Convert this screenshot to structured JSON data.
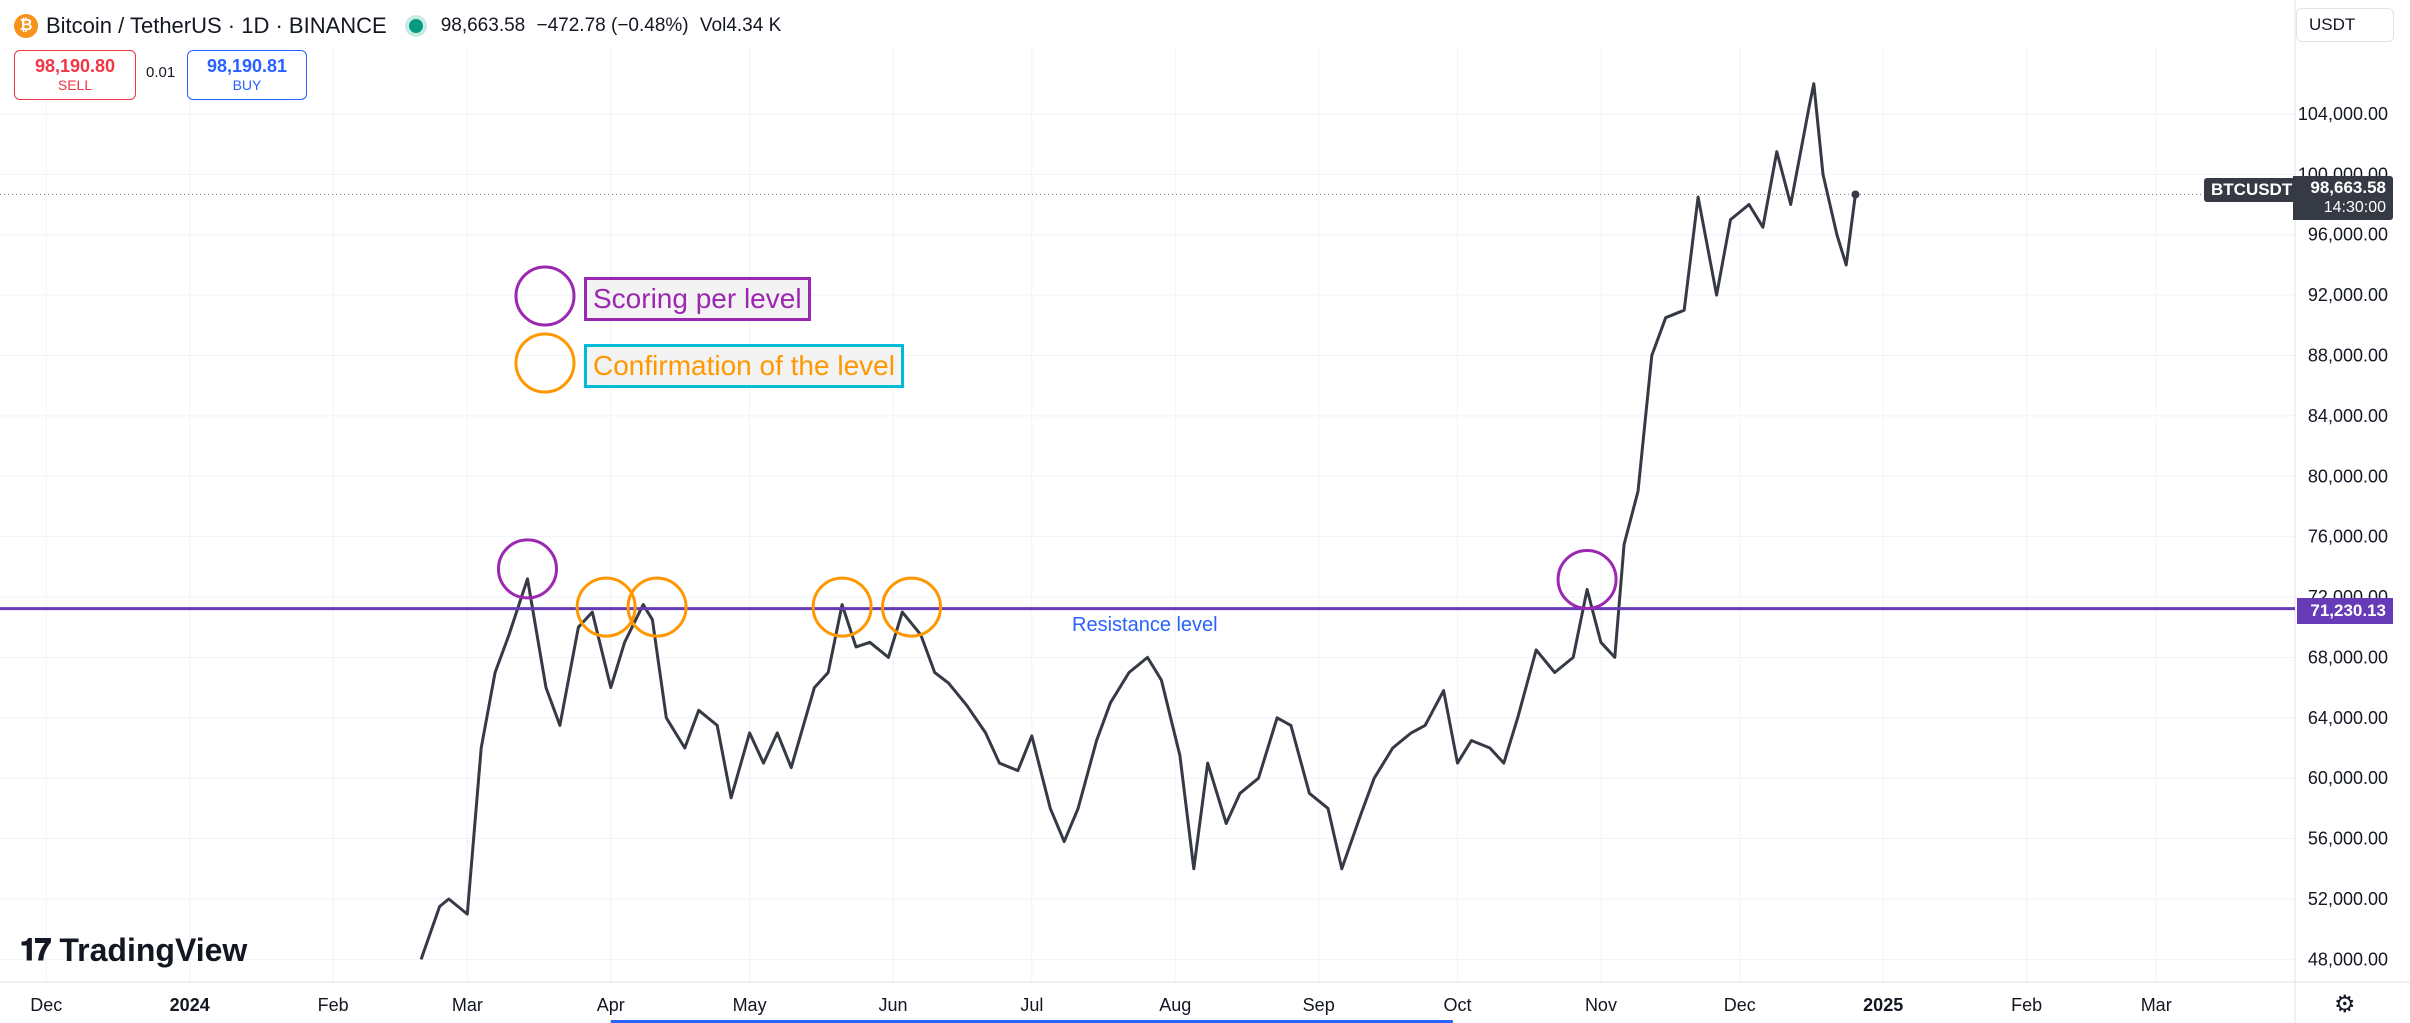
{
  "header": {
    "title": "Bitcoin / TetherUS · 1D · BINANCE",
    "last": "98,663.58",
    "change": "−472.78 (−0.48%)",
    "volume": "Vol4.34 K"
  },
  "trade": {
    "sell_price": "98,190.80",
    "sell_label": "SELL",
    "spread": "0.01",
    "buy_price": "98,190.81",
    "buy_label": "BUY"
  },
  "currency": "USDT",
  "legend": {
    "scoring": "Scoring per level",
    "confirmation": "Confirmation of the level"
  },
  "resistance": {
    "label": "Resistance level",
    "price_tag": "71,230.13"
  },
  "symbol_tag": "BTCUSDT",
  "price_tag": "98,663.58",
  "countdown": "14:30:00",
  "brand": "TradingView",
  "colors": {
    "line": "#363a45",
    "resistance": "#673ab7",
    "scoring": "#9c27b0",
    "confirmation": "#ff9800",
    "confirmation_box": "#00bcd4",
    "sell": "#f23645",
    "buy": "#2962ff"
  },
  "chart_data": {
    "type": "line",
    "series": [
      {
        "name": "BTCUSDT",
        "x": [
          "2024-02-20",
          "2024-02-24",
          "2024-02-26",
          "2024-03-01",
          "2024-03-04",
          "2024-03-07",
          "2024-03-10",
          "2024-03-14",
          "2024-03-18",
          "2024-03-21",
          "2024-03-25",
          "2024-03-28",
          "2024-04-01",
          "2024-04-04",
          "2024-04-08",
          "2024-04-10",
          "2024-04-13",
          "2024-04-17",
          "2024-04-20",
          "2024-04-24",
          "2024-04-27",
          "2024-05-01",
          "2024-05-04",
          "2024-05-07",
          "2024-05-10",
          "2024-05-15",
          "2024-05-18",
          "2024-05-21",
          "2024-05-24",
          "2024-05-27",
          "2024-05-31",
          "2024-06-03",
          "2024-06-07",
          "2024-06-10",
          "2024-06-13",
          "2024-06-17",
          "2024-06-21",
          "2024-06-24",
          "2024-06-28",
          "2024-07-01",
          "2024-07-05",
          "2024-07-08",
          "2024-07-11",
          "2024-07-15",
          "2024-07-18",
          "2024-07-22",
          "2024-07-26",
          "2024-07-29",
          "2024-08-02",
          "2024-08-05",
          "2024-08-08",
          "2024-08-12",
          "2024-08-15",
          "2024-08-19",
          "2024-08-23",
          "2024-08-26",
          "2024-08-30",
          "2024-09-03",
          "2024-09-06",
          "2024-09-10",
          "2024-09-13",
          "2024-09-17",
          "2024-09-21",
          "2024-09-24",
          "2024-09-28",
          "2024-10-01",
          "2024-10-04",
          "2024-10-08",
          "2024-10-11",
          "2024-10-14",
          "2024-10-18",
          "2024-10-22",
          "2024-10-26",
          "2024-10-29",
          "2024-11-01",
          "2024-11-04",
          "2024-11-06",
          "2024-11-09",
          "2024-11-12",
          "2024-11-15",
          "2024-11-19",
          "2024-11-22",
          "2024-11-26",
          "2024-11-29",
          "2024-12-03",
          "2024-12-06",
          "2024-12-09",
          "2024-12-12",
          "2024-12-16",
          "2024-12-17",
          "2024-12-19",
          "2024-12-22",
          "2024-12-24",
          "2024-12-26"
        ],
        "values": [
          48000,
          51500,
          52000,
          51000,
          62000,
          67000,
          69500,
          73200,
          66000,
          63500,
          70000,
          71000,
          66000,
          69000,
          71500,
          70500,
          64000,
          62000,
          64500,
          63500,
          58700,
          63000,
          61000,
          63000,
          60700,
          66000,
          67000,
          71500,
          68700,
          69000,
          68000,
          71000,
          69500,
          67000,
          66300,
          64800,
          63000,
          61000,
          60500,
          62800,
          58000,
          55800,
          58000,
          62500,
          65000,
          67000,
          68000,
          66500,
          61500,
          54000,
          61000,
          57000,
          59000,
          60000,
          64000,
          63500,
          59000,
          58000,
          54000,
          57500,
          60000,
          62000,
          63000,
          63500,
          65800,
          61000,
          62500,
          62000,
          61000,
          64000,
          68500,
          67000,
          68000,
          72500,
          69000,
          68000,
          75500,
          79000,
          88000,
          90500,
          91000,
          98500,
          92000,
          97000,
          98000,
          96500,
          101500,
          98000,
          104500,
          106000,
          100000,
          96000,
          94000,
          98663.58
        ],
        "dates": true
      }
    ],
    "x_ticks": [
      "Dec",
      "2024",
      "Feb",
      "Mar",
      "Apr",
      "May",
      "Jun",
      "Jul",
      "Aug",
      "Sep",
      "Oct",
      "Nov",
      "Dec",
      "2025",
      "Feb",
      "Mar"
    ],
    "y_ticks": [
      "104,000.00",
      "100,000.00",
      "96,000.00",
      "92,000.00",
      "88,000.00",
      "84,000.00",
      "80,000.00",
      "76,000.00",
      "72,000.00",
      "68,000.00",
      "64,000.00",
      "60,000.00",
      "56,000.00",
      "52,000.00",
      "48,000.00"
    ],
    "y_tick_values": [
      104000,
      100000,
      96000,
      92000,
      88000,
      84000,
      80000,
      76000,
      72000,
      68000,
      64000,
      60000,
      56000,
      52000,
      48000
    ],
    "ylim": [
      46500,
      108500
    ],
    "xlim": [
      "2023-11-21",
      "2025-03-31"
    ],
    "resistance_level": 71230.13,
    "last_price": 98663.58,
    "scoring_points": [
      {
        "x": "2024-03-14",
        "y": 73200
      },
      {
        "x": "2024-10-29",
        "y": 72500
      }
    ],
    "confirmation_points": [
      {
        "x": "2024-03-31",
        "y": 71200
      },
      {
        "x": "2024-04-11",
        "y": 71200
      },
      {
        "x": "2024-05-21",
        "y": 71200
      },
      {
        "x": "2024-06-05",
        "y": 71200
      }
    ],
    "grid": true
  }
}
